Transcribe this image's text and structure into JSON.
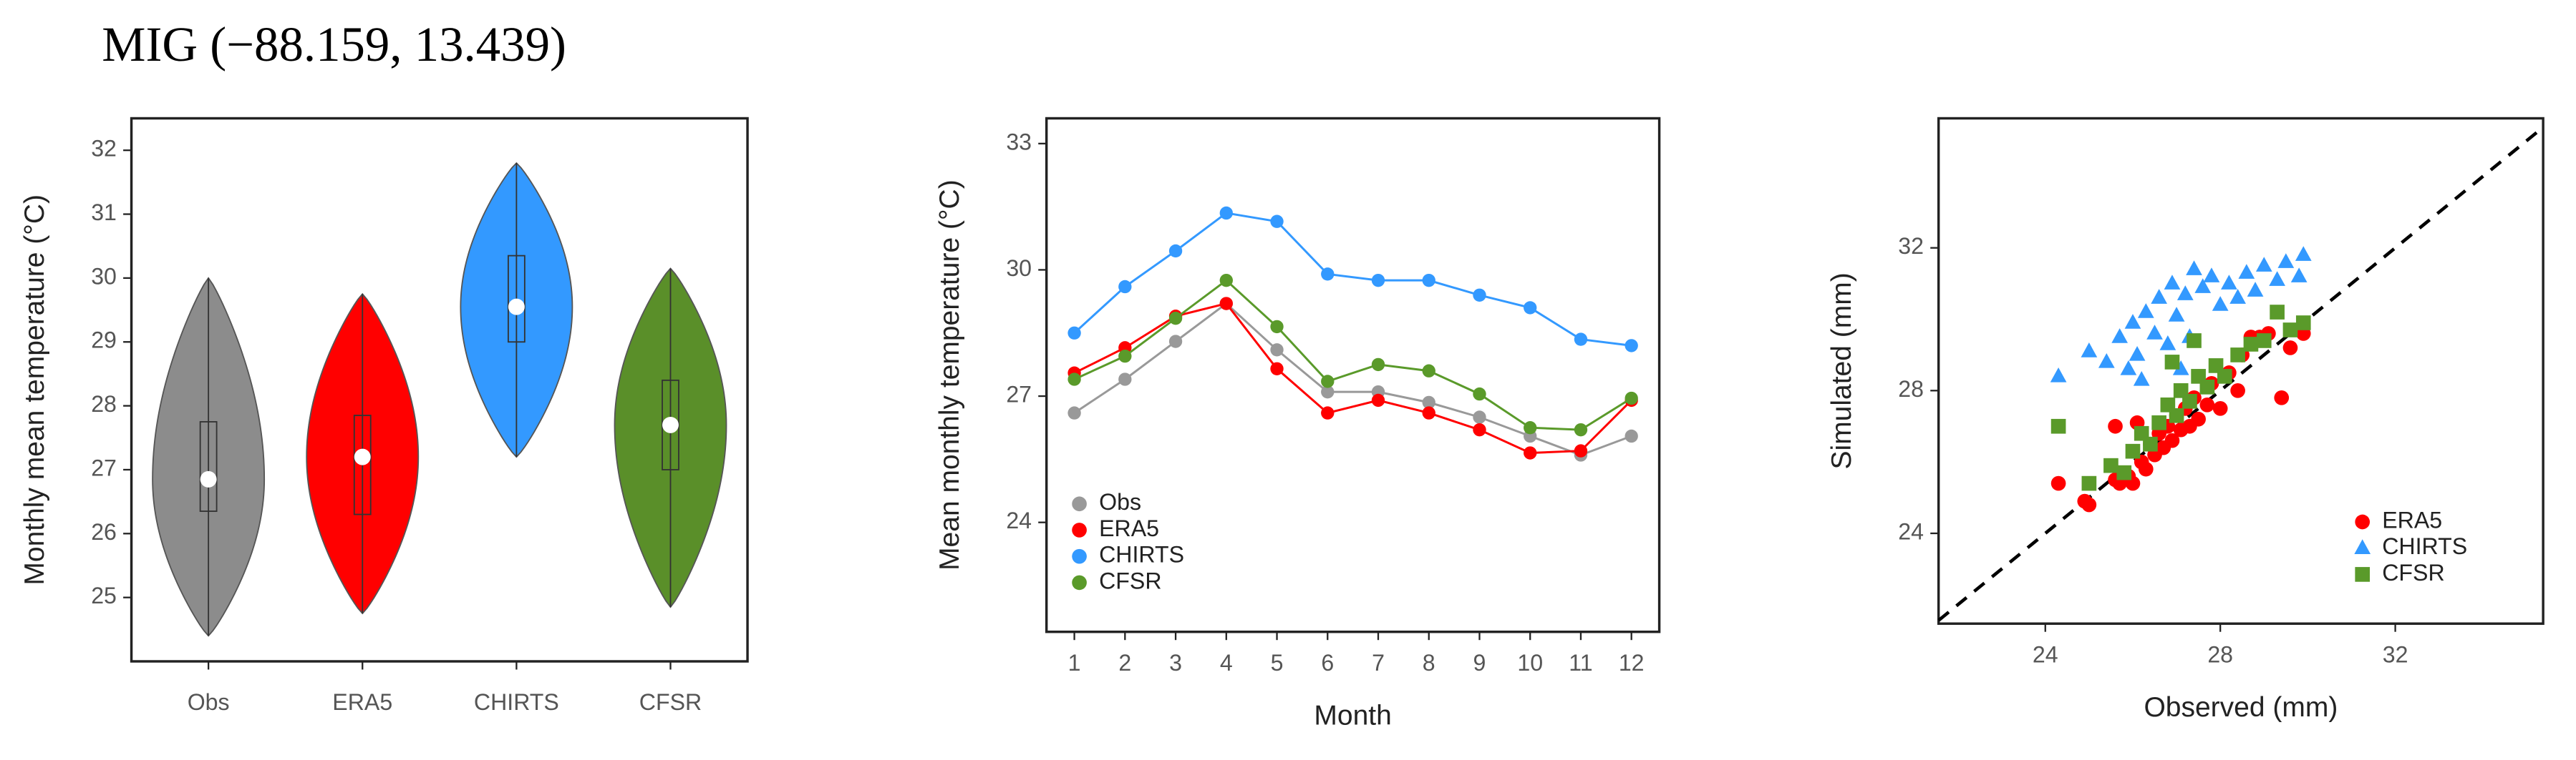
{
  "title": "MIG (−88.159, 13.439)",
  "chart_data": [
    {
      "type": "violin",
      "ylabel": "Monthly mean temperature (°C)",
      "categories": [
        "Obs",
        "ERA5",
        "CHIRTS",
        "CFSR"
      ],
      "violins": [
        {
          "color": "#8c8c8c",
          "min": 24.4,
          "q1": 26.35,
          "median": 26.85,
          "q3": 27.75,
          "max": 30.0
        },
        {
          "color": "#ff0000",
          "min": 24.75,
          "q1": 26.3,
          "median": 27.2,
          "q3": 27.85,
          "max": 29.75
        },
        {
          "color": "#3399ff",
          "min": 27.2,
          "q1": 29.0,
          "median": 29.55,
          "q3": 30.35,
          "max": 31.8
        },
        {
          "color": "#5a8f29",
          "min": 24.85,
          "q1": 27.0,
          "median": 27.7,
          "q3": 28.4,
          "max": 30.15
        }
      ],
      "ylim": [
        24,
        32.5
      ],
      "yticks": [
        25,
        26,
        27,
        28,
        29,
        30,
        31,
        32
      ]
    },
    {
      "type": "line",
      "xlabel": "Month",
      "ylabel": "Mean monthly temperature (°C)",
      "x": [
        1,
        2,
        3,
        4,
        5,
        6,
        7,
        8,
        9,
        10,
        11,
        12
      ],
      "series": [
        {
          "name": "Obs",
          "color": "#999999",
          "values": [
            26.6,
            27.4,
            28.3,
            29.2,
            28.1,
            27.1,
            27.1,
            26.85,
            26.5,
            26.05,
            25.6,
            26.05
          ]
        },
        {
          "name": "ERA5",
          "color": "#ff0000",
          "values": [
            27.55,
            28.15,
            28.9,
            29.2,
            27.65,
            26.6,
            26.9,
            26.6,
            26.2,
            25.65,
            25.7,
            26.9
          ]
        },
        {
          "name": "CHIRTS",
          "color": "#3399ff",
          "values": [
            28.5,
            29.6,
            30.45,
            31.35,
            31.15,
            29.9,
            29.75,
            29.75,
            29.4,
            29.1,
            28.35,
            28.2
          ]
        },
        {
          "name": "CFSR",
          "color": "#5a9a2a",
          "values": [
            27.4,
            27.95,
            28.85,
            29.75,
            28.65,
            27.35,
            27.75,
            27.6,
            27.05,
            26.25,
            26.2,
            26.95
          ]
        }
      ],
      "xlim": [
        0.45,
        12.55
      ],
      "xticks": [
        1,
        2,
        3,
        4,
        5,
        6,
        7,
        8,
        9,
        10,
        11,
        12
      ],
      "ylim": [
        21.4,
        33.6
      ],
      "yticks": [
        24,
        27,
        30,
        33
      ],
      "legend": "bottom-left"
    },
    {
      "type": "scatter",
      "xlabel": "Observed (mm)",
      "ylabel": "Simulated (mm)",
      "series": [
        {
          "name": "ERA5",
          "color": "#ff0000",
          "marker": "circle",
          "x": [
            24.3,
            24.9,
            25.0,
            25.6,
            25.7,
            25.9,
            26.0,
            26.2,
            26.3,
            26.4,
            26.5,
            26.6,
            26.7,
            26.8,
            26.9,
            27.0,
            27.1,
            27.2,
            27.3,
            27.4,
            27.5,
            27.7,
            27.8,
            28.0,
            28.2,
            28.4,
            28.5,
            28.7,
            28.9,
            29.1,
            29.4,
            29.6,
            29.9,
            25.6,
            26.1
          ],
          "values": [
            25.4,
            24.9,
            24.8,
            25.5,
            25.4,
            25.6,
            25.4,
            26.0,
            25.8,
            26.5,
            26.2,
            26.8,
            26.4,
            27.0,
            26.6,
            27.3,
            26.9,
            27.5,
            27.0,
            27.8,
            27.2,
            27.6,
            28.2,
            27.5,
            28.5,
            28.0,
            29.0,
            29.5,
            29.5,
            29.6,
            27.8,
            29.2,
            29.6,
            27.0,
            27.1
          ]
        },
        {
          "name": "CHIRTS",
          "color": "#3399ff",
          "marker": "triangle",
          "x": [
            24.3,
            25.0,
            25.4,
            25.7,
            25.9,
            26.0,
            26.2,
            26.3,
            26.5,
            26.6,
            26.8,
            26.9,
            27.0,
            27.2,
            27.3,
            27.4,
            27.6,
            27.8,
            28.0,
            28.2,
            28.4,
            28.6,
            28.8,
            29.0,
            29.3,
            29.5,
            29.8,
            29.9,
            26.1,
            27.1
          ],
          "values": [
            28.4,
            29.1,
            28.8,
            29.5,
            28.6,
            29.9,
            28.3,
            30.2,
            29.6,
            30.6,
            29.3,
            31.0,
            30.1,
            30.7,
            29.5,
            31.4,
            30.9,
            31.2,
            30.4,
            31.0,
            30.6,
            31.3,
            30.8,
            31.5,
            31.1,
            31.6,
            31.2,
            31.8,
            29.0,
            28.6
          ]
        },
        {
          "name": "CFSR",
          "color": "#5a9a2a",
          "marker": "square",
          "x": [
            24.3,
            25.0,
            25.5,
            25.8,
            26.0,
            26.2,
            26.4,
            26.6,
            26.8,
            27.0,
            27.1,
            27.3,
            27.5,
            27.7,
            27.9,
            28.1,
            28.4,
            28.7,
            29.0,
            29.3,
            29.6,
            29.9,
            26.9,
            27.4
          ],
          "values": [
            27.0,
            25.4,
            25.9,
            25.7,
            26.3,
            26.8,
            26.5,
            27.1,
            27.6,
            27.3,
            28.0,
            27.7,
            28.4,
            28.1,
            28.7,
            28.4,
            29.0,
            29.3,
            29.4,
            30.2,
            29.7,
            29.9,
            28.8,
            29.4
          ]
        }
      ],
      "xlim": [
        21.56,
        35.38
      ],
      "xticks": [
        24,
        28,
        32
      ],
      "ylim": [
        21.47,
        35.63
      ],
      "yticks": [
        24,
        28,
        32
      ],
      "legend": "bottom-right",
      "identity_line": true
    }
  ]
}
